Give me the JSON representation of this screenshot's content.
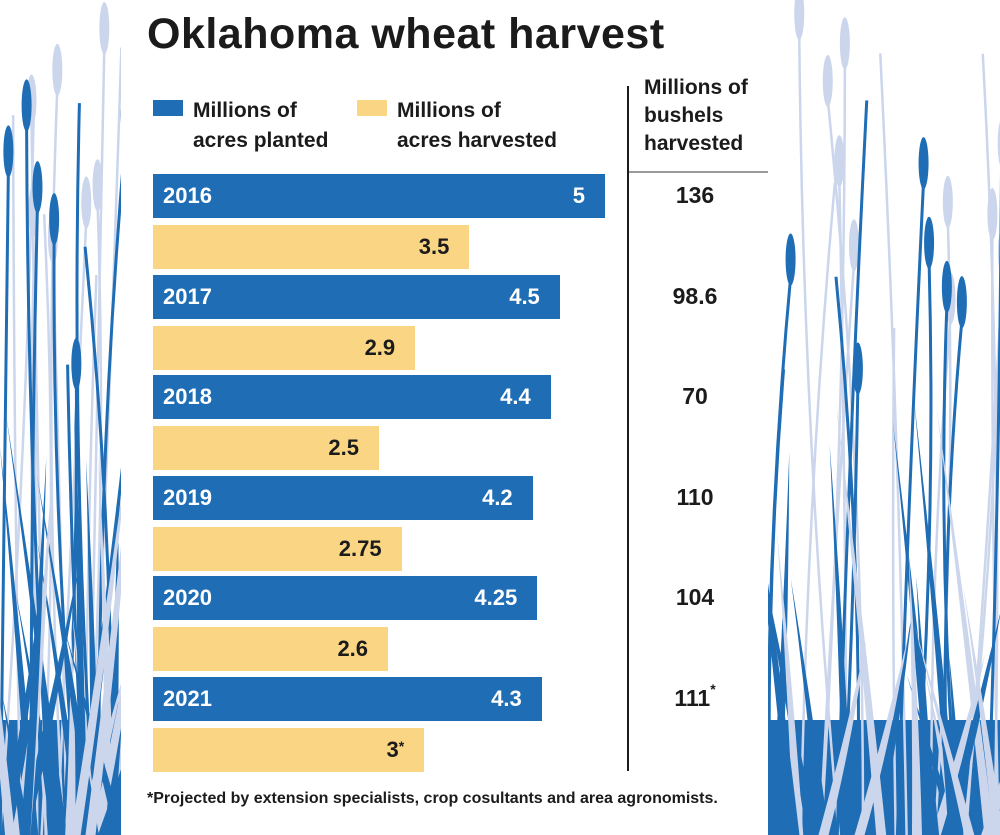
{
  "chart_data": {
    "type": "bar",
    "title": "Oklahoma wheat harvest",
    "categories": [
      "2016",
      "2017",
      "2018",
      "2019",
      "2020",
      "2021"
    ],
    "series": [
      {
        "name": "Millions of acres planted",
        "color": "#1f6db5",
        "values": [
          5,
          4.5,
          4.4,
          4.2,
          4.25,
          4.3
        ],
        "labels": [
          "5",
          "4.5",
          "4.4",
          "4.2",
          "4.25",
          "4.3"
        ]
      },
      {
        "name": "Millions of acres harvested",
        "color": "#fad584",
        "values": [
          3.5,
          2.9,
          2.5,
          2.75,
          2.6,
          3
        ],
        "labels": [
          "3.5",
          "2.9",
          "2.5",
          "2.75",
          "2.6",
          "3*"
        ]
      }
    ],
    "bushels": {
      "header": "Millions of bushels harvested",
      "values": [
        136,
        98.6,
        70,
        110,
        104,
        111
      ],
      "labels": [
        "136",
        "98.6",
        "70",
        "110",
        "104",
        "111*"
      ]
    },
    "footnote": "*Projected by extension specialists, crop cosultants and area agronomists.",
    "orientation": "horizontal",
    "legend_position": "top"
  }
}
